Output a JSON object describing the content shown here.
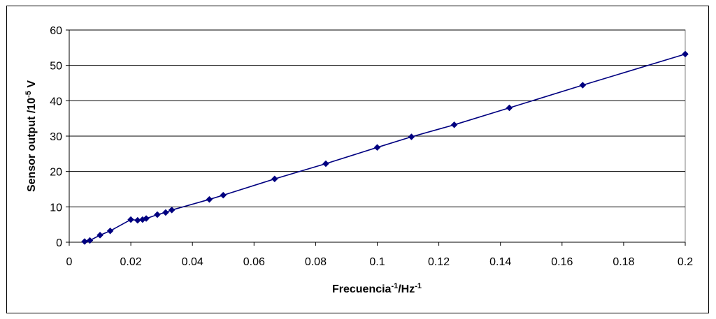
{
  "chart_data": {
    "type": "line",
    "xlabel": {
      "main": "Frecuencia",
      "sup1": "-1",
      "mid": "/Hz",
      "sup2": "-1"
    },
    "ylabel": {
      "main": "Sensor output /10",
      "sup": "-5",
      "tail": " V"
    },
    "xlim": [
      0,
      0.2
    ],
    "ylim": [
      0,
      60
    ],
    "xticks": [
      0,
      0.02,
      0.04,
      0.06,
      0.08,
      0.1,
      0.12,
      0.14,
      0.16,
      0.18,
      0.2
    ],
    "xtick_labels": [
      "0",
      "0.02",
      "0.04",
      "0.06",
      "0.08",
      "0.1",
      "0.12",
      "0.14",
      "0.16",
      "0.18",
      "0.2"
    ],
    "yticks": [
      0,
      10,
      20,
      30,
      40,
      50,
      60
    ],
    "ytick_labels": [
      "0",
      "10",
      "20",
      "30",
      "40",
      "50",
      "60"
    ],
    "grid": "horizontal",
    "series": [
      {
        "color": "#000080",
        "marker": "diamond",
        "x": [
          0.005,
          0.0067,
          0.01,
          0.0133,
          0.02,
          0.0222,
          0.0238,
          0.025,
          0.0286,
          0.0313,
          0.0333,
          0.0455,
          0.05,
          0.0667,
          0.0833,
          0.1,
          0.1111,
          0.125,
          0.1429,
          0.1667,
          0.2
        ],
        "y": [
          0.2,
          0.5,
          2.0,
          3.2,
          6.4,
          6.2,
          6.4,
          6.7,
          7.8,
          8.4,
          9.1,
          12.1,
          13.3,
          17.9,
          22.2,
          26.8,
          29.8,
          33.2,
          38.0,
          44.4,
          53.2
        ]
      }
    ]
  }
}
